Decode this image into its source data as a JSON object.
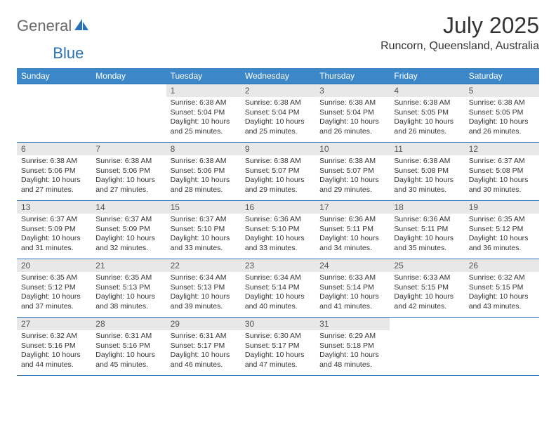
{
  "logo": {
    "t1": "General",
    "t2": "Blue"
  },
  "title": "July 2025",
  "location": "Runcorn, Queensland, Australia",
  "colors": {
    "header_bg": "#3b87c8",
    "border": "#2a72b5",
    "date_bg": "#e8e8e8",
    "text": "#333333",
    "logo_gray": "#6a6a6a",
    "logo_blue": "#2a72b5"
  },
  "dayHeaders": [
    "Sunday",
    "Monday",
    "Tuesday",
    "Wednesday",
    "Thursday",
    "Friday",
    "Saturday"
  ],
  "weeks": [
    [
      null,
      null,
      {
        "d": "1",
        "rise": "6:38 AM",
        "set": "5:04 PM",
        "dl": "10 hours and 25 minutes."
      },
      {
        "d": "2",
        "rise": "6:38 AM",
        "set": "5:04 PM",
        "dl": "10 hours and 25 minutes."
      },
      {
        "d": "3",
        "rise": "6:38 AM",
        "set": "5:04 PM",
        "dl": "10 hours and 26 minutes."
      },
      {
        "d": "4",
        "rise": "6:38 AM",
        "set": "5:05 PM",
        "dl": "10 hours and 26 minutes."
      },
      {
        "d": "5",
        "rise": "6:38 AM",
        "set": "5:05 PM",
        "dl": "10 hours and 26 minutes."
      }
    ],
    [
      {
        "d": "6",
        "rise": "6:38 AM",
        "set": "5:06 PM",
        "dl": "10 hours and 27 minutes."
      },
      {
        "d": "7",
        "rise": "6:38 AM",
        "set": "5:06 PM",
        "dl": "10 hours and 27 minutes."
      },
      {
        "d": "8",
        "rise": "6:38 AM",
        "set": "5:06 PM",
        "dl": "10 hours and 28 minutes."
      },
      {
        "d": "9",
        "rise": "6:38 AM",
        "set": "5:07 PM",
        "dl": "10 hours and 29 minutes."
      },
      {
        "d": "10",
        "rise": "6:38 AM",
        "set": "5:07 PM",
        "dl": "10 hours and 29 minutes."
      },
      {
        "d": "11",
        "rise": "6:38 AM",
        "set": "5:08 PM",
        "dl": "10 hours and 30 minutes."
      },
      {
        "d": "12",
        "rise": "6:37 AM",
        "set": "5:08 PM",
        "dl": "10 hours and 30 minutes."
      }
    ],
    [
      {
        "d": "13",
        "rise": "6:37 AM",
        "set": "5:09 PM",
        "dl": "10 hours and 31 minutes."
      },
      {
        "d": "14",
        "rise": "6:37 AM",
        "set": "5:09 PM",
        "dl": "10 hours and 32 minutes."
      },
      {
        "d": "15",
        "rise": "6:37 AM",
        "set": "5:10 PM",
        "dl": "10 hours and 33 minutes."
      },
      {
        "d": "16",
        "rise": "6:36 AM",
        "set": "5:10 PM",
        "dl": "10 hours and 33 minutes."
      },
      {
        "d": "17",
        "rise": "6:36 AM",
        "set": "5:11 PM",
        "dl": "10 hours and 34 minutes."
      },
      {
        "d": "18",
        "rise": "6:36 AM",
        "set": "5:11 PM",
        "dl": "10 hours and 35 minutes."
      },
      {
        "d": "19",
        "rise": "6:35 AM",
        "set": "5:12 PM",
        "dl": "10 hours and 36 minutes."
      }
    ],
    [
      {
        "d": "20",
        "rise": "6:35 AM",
        "set": "5:12 PM",
        "dl": "10 hours and 37 minutes."
      },
      {
        "d": "21",
        "rise": "6:35 AM",
        "set": "5:13 PM",
        "dl": "10 hours and 38 minutes."
      },
      {
        "d": "22",
        "rise": "6:34 AM",
        "set": "5:13 PM",
        "dl": "10 hours and 39 minutes."
      },
      {
        "d": "23",
        "rise": "6:34 AM",
        "set": "5:14 PM",
        "dl": "10 hours and 40 minutes."
      },
      {
        "d": "24",
        "rise": "6:33 AM",
        "set": "5:14 PM",
        "dl": "10 hours and 41 minutes."
      },
      {
        "d": "25",
        "rise": "6:33 AM",
        "set": "5:15 PM",
        "dl": "10 hours and 42 minutes."
      },
      {
        "d": "26",
        "rise": "6:32 AM",
        "set": "5:15 PM",
        "dl": "10 hours and 43 minutes."
      }
    ],
    [
      {
        "d": "27",
        "rise": "6:32 AM",
        "set": "5:16 PM",
        "dl": "10 hours and 44 minutes."
      },
      {
        "d": "28",
        "rise": "6:31 AM",
        "set": "5:16 PM",
        "dl": "10 hours and 45 minutes."
      },
      {
        "d": "29",
        "rise": "6:31 AM",
        "set": "5:17 PM",
        "dl": "10 hours and 46 minutes."
      },
      {
        "d": "30",
        "rise": "6:30 AM",
        "set": "5:17 PM",
        "dl": "10 hours and 47 minutes."
      },
      {
        "d": "31",
        "rise": "6:29 AM",
        "set": "5:18 PM",
        "dl": "10 hours and 48 minutes."
      },
      null,
      null
    ]
  ],
  "labels": {
    "sunrise": "Sunrise:",
    "sunset": "Sunset:",
    "daylight": "Daylight:"
  }
}
